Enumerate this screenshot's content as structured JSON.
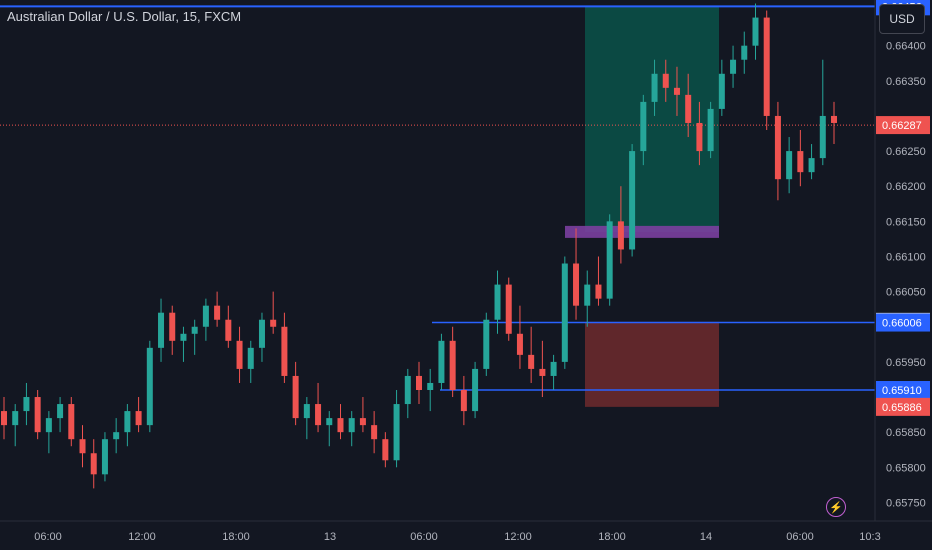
{
  "header": {
    "symbol_title": "Australian Dollar / U.S. Dollar, 15, FXCM",
    "currency_button": "USD"
  },
  "colors": {
    "background": "#131722",
    "up": "#26a69a",
    "down": "#ef5350",
    "line_blue": "#2962ff",
    "target_zone": "#0b5249",
    "stop_zone": "#6e2a2d",
    "entry_marker": "#7b3fa0",
    "axis_text": "#b2b5be"
  },
  "chart_data": {
    "type": "candlestick",
    "title": "Australian Dollar / U.S. Dollar, 15, FXCM",
    "xlabel": "",
    "ylabel": "",
    "y_ticks": [
      "0.66400",
      "0.66350",
      "0.66250",
      "0.66200",
      "0.66150",
      "0.66100",
      "0.66050",
      "0.65950",
      "0.65850",
      "0.65800",
      "0.65750"
    ],
    "y_tick_values": [
      0.664,
      0.6635,
      0.6625,
      0.662,
      0.6615,
      0.661,
      0.6605,
      0.6595,
      0.6585,
      0.658,
      0.6575
    ],
    "x_ticks": [
      "06:00",
      "12:00",
      "18:00",
      "13",
      "06:00",
      "12:00",
      "18:00",
      "14",
      "06:00",
      "10:3"
    ],
    "ylim": [
      0.65725,
      0.66465
    ],
    "price_labels": [
      {
        "text": "0.66287",
        "value": 0.66287,
        "color": "#ef5350",
        "kind": "last-price"
      },
      {
        "text": "0.66007",
        "value": 0.66007,
        "color": "#c8ccd6",
        "kind": "marker"
      },
      {
        "text": "0.66006",
        "value": 0.66006,
        "color": "#2962ff",
        "kind": "horizontal-line"
      },
      {
        "text": "0.65910",
        "value": 0.6591,
        "color": "#2962ff",
        "kind": "horizontal-line"
      },
      {
        "text": "0.65886",
        "value": 0.65886,
        "color": "#ef5350",
        "kind": "stop"
      }
    ],
    "top_line_label": "0.66456",
    "horizontal_lines": [
      0.66456,
      0.66006,
      0.6591
    ],
    "position": {
      "entry": 0.66135,
      "target": 0.66455,
      "stop": 0.65886
    },
    "candles_ohlc": [
      [
        0.6588,
        0.659,
        0.6584,
        0.6586
      ],
      [
        0.6586,
        0.6589,
        0.6583,
        0.6588
      ],
      [
        0.6588,
        0.6592,
        0.6586,
        0.659
      ],
      [
        0.659,
        0.6591,
        0.6584,
        0.6585
      ],
      [
        0.6585,
        0.6588,
        0.6582,
        0.6587
      ],
      [
        0.6587,
        0.659,
        0.6585,
        0.6589
      ],
      [
        0.6589,
        0.659,
        0.6583,
        0.6584
      ],
      [
        0.6584,
        0.6586,
        0.658,
        0.6582
      ],
      [
        0.6582,
        0.6584,
        0.6577,
        0.6579
      ],
      [
        0.6579,
        0.6585,
        0.6578,
        0.6584
      ],
      [
        0.6584,
        0.6587,
        0.6582,
        0.6585
      ],
      [
        0.6585,
        0.6589,
        0.6583,
        0.6588
      ],
      [
        0.6588,
        0.659,
        0.6585,
        0.6586
      ],
      [
        0.6586,
        0.6598,
        0.6585,
        0.6597
      ],
      [
        0.6597,
        0.6604,
        0.6595,
        0.6602
      ],
      [
        0.6602,
        0.6603,
        0.6596,
        0.6598
      ],
      [
        0.6598,
        0.66,
        0.6595,
        0.6599
      ],
      [
        0.6599,
        0.6601,
        0.6596,
        0.66
      ],
      [
        0.66,
        0.6604,
        0.6598,
        0.6603
      ],
      [
        0.6603,
        0.6605,
        0.66,
        0.6601
      ],
      [
        0.6601,
        0.6603,
        0.6597,
        0.6598
      ],
      [
        0.6598,
        0.66,
        0.6592,
        0.6594
      ],
      [
        0.6594,
        0.6598,
        0.6592,
        0.6597
      ],
      [
        0.6597,
        0.6602,
        0.6595,
        0.6601
      ],
      [
        0.6601,
        0.6605,
        0.6599,
        0.66
      ],
      [
        0.66,
        0.6602,
        0.6592,
        0.6593
      ],
      [
        0.6593,
        0.6595,
        0.6586,
        0.6587
      ],
      [
        0.6587,
        0.659,
        0.6584,
        0.6589
      ],
      [
        0.6589,
        0.6592,
        0.6585,
        0.6586
      ],
      [
        0.6586,
        0.6588,
        0.6583,
        0.6587
      ],
      [
        0.6587,
        0.6589,
        0.6584,
        0.6585
      ],
      [
        0.6585,
        0.6588,
        0.6583,
        0.6587
      ],
      [
        0.6587,
        0.659,
        0.6585,
        0.6586
      ],
      [
        0.6586,
        0.6588,
        0.6582,
        0.6584
      ],
      [
        0.6584,
        0.6585,
        0.658,
        0.6581
      ],
      [
        0.6581,
        0.6591,
        0.658,
        0.6589
      ],
      [
        0.6589,
        0.6594,
        0.6587,
        0.6593
      ],
      [
        0.6593,
        0.6595,
        0.6589,
        0.6591
      ],
      [
        0.6591,
        0.6594,
        0.6588,
        0.6592
      ],
      [
        0.6592,
        0.6599,
        0.6591,
        0.6598
      ],
      [
        0.6598,
        0.66,
        0.659,
        0.6591
      ],
      [
        0.6591,
        0.6593,
        0.6586,
        0.6588
      ],
      [
        0.6588,
        0.6595,
        0.6587,
        0.6594
      ],
      [
        0.6594,
        0.6602,
        0.6593,
        0.6601
      ],
      [
        0.6601,
        0.6608,
        0.6599,
        0.6606
      ],
      [
        0.6606,
        0.6607,
        0.6598,
        0.6599
      ],
      [
        0.6599,
        0.6603,
        0.6594,
        0.6596
      ],
      [
        0.6596,
        0.66,
        0.6592,
        0.6594
      ],
      [
        0.6594,
        0.6598,
        0.659,
        0.6593
      ],
      [
        0.6593,
        0.6596,
        0.6591,
        0.6595
      ],
      [
        0.6595,
        0.661,
        0.6594,
        0.6609
      ],
      [
        0.6609,
        0.6614,
        0.6601,
        0.6603
      ],
      [
        0.6603,
        0.6608,
        0.66,
        0.6606
      ],
      [
        0.6606,
        0.661,
        0.6603,
        0.6604
      ],
      [
        0.6604,
        0.6616,
        0.6603,
        0.6615
      ],
      [
        0.6615,
        0.662,
        0.6609,
        0.6611
      ],
      [
        0.6611,
        0.6626,
        0.661,
        0.6625
      ],
      [
        0.6625,
        0.6633,
        0.6623,
        0.6632
      ],
      [
        0.6632,
        0.6638,
        0.663,
        0.6636
      ],
      [
        0.6636,
        0.6638,
        0.6632,
        0.6634
      ],
      [
        0.6634,
        0.6637,
        0.663,
        0.6633
      ],
      [
        0.6633,
        0.6636,
        0.6627,
        0.6629
      ],
      [
        0.6629,
        0.6632,
        0.6623,
        0.6625
      ],
      [
        0.6625,
        0.6632,
        0.6624,
        0.6631
      ],
      [
        0.6631,
        0.6638,
        0.663,
        0.6636
      ],
      [
        0.6636,
        0.664,
        0.6634,
        0.6638
      ],
      [
        0.6638,
        0.6642,
        0.6636,
        0.664
      ],
      [
        0.664,
        0.6646,
        0.6638,
        0.6644
      ],
      [
        0.6644,
        0.6645,
        0.6628,
        0.663
      ],
      [
        0.663,
        0.6632,
        0.6618,
        0.6621
      ],
      [
        0.6621,
        0.6627,
        0.6619,
        0.6625
      ],
      [
        0.6625,
        0.6628,
        0.662,
        0.6622
      ],
      [
        0.6622,
        0.6626,
        0.6621,
        0.6624
      ],
      [
        0.6624,
        0.6638,
        0.6623,
        0.663
      ],
      [
        0.663,
        0.6632,
        0.6626,
        0.6629
      ]
    ]
  }
}
